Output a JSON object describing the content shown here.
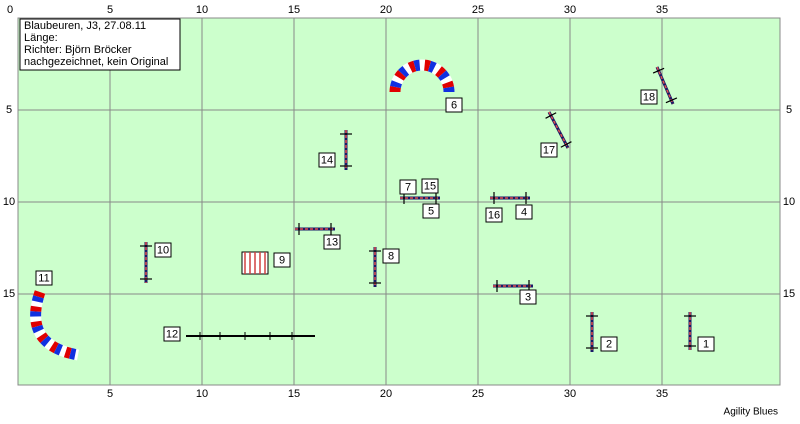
{
  "info": [
    "Blaubeuren, J3, 27.08.11",
    "Länge:",
    "Richter: Björn Bröcker",
    "nachgezeichnet, kein Original"
  ],
  "axes": {
    "x": [
      0,
      5,
      10,
      15,
      20,
      25,
      30,
      35
    ],
    "y": [
      0,
      5,
      10,
      15
    ]
  },
  "obstacles": [
    1,
    2,
    3,
    4,
    5,
    6,
    7,
    8,
    9,
    10,
    11,
    12,
    13,
    14,
    15,
    16,
    17,
    18
  ],
  "footer": "Agility Blues"
}
